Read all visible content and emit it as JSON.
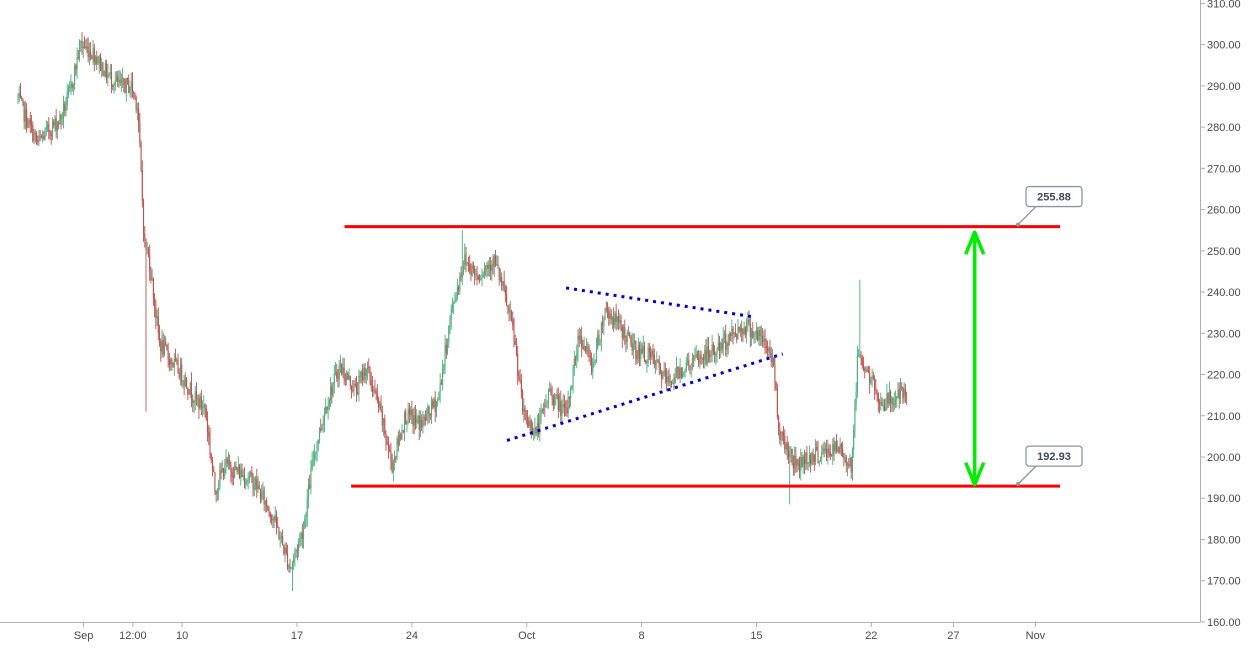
{
  "chart_data": {
    "type": "candlestick",
    "title": "",
    "xlabel": "",
    "ylabel": "",
    "ylim": [
      160,
      310
    ],
    "grid": false,
    "legend": "none",
    "colors": {
      "up": "#4caf7f",
      "down": "#c0504d",
      "resistance": "#ff0000",
      "support": "#ff0000",
      "triangle": "#0000cc",
      "range_arrow": "#00ee00",
      "axis": "#b0b0b0",
      "label": "#4a4a4a"
    },
    "x_ticks": [
      {
        "label": "Sep",
        "day": 4
      },
      {
        "label": "12:00",
        "day": 7
      },
      {
        "label": "10",
        "day": 10
      },
      {
        "label": "17",
        "day": 17
      },
      {
        "label": "24",
        "day": 24
      },
      {
        "label": "Oct",
        "day": 31
      },
      {
        "label": "8",
        "day": 38
      },
      {
        "label": "15",
        "day": 45
      },
      {
        "label": "22",
        "day": 52
      },
      {
        "label": "27",
        "day": 57
      },
      {
        "label": "Nov",
        "day": 62
      }
    ],
    "y_ticks": [
      "310.00",
      "300.00",
      "290.00",
      "280.00",
      "270.00",
      "260.00",
      "250.00",
      "240.00",
      "230.00",
      "220.00",
      "210.00",
      "200.00",
      "190.00",
      "180.00",
      "170.00",
      "160.00"
    ],
    "price_path": [
      [
        0.0,
        287
      ],
      [
        0.5,
        282
      ],
      [
        1.2,
        276
      ],
      [
        1.8,
        279
      ],
      [
        2.6,
        282
      ],
      [
        3.2,
        289
      ],
      [
        3.8,
        300
      ],
      [
        4.6,
        298
      ],
      [
        5.4,
        293
      ],
      [
        6.2,
        290
      ],
      [
        6.9,
        290
      ],
      [
        7.3,
        285
      ],
      [
        7.7,
        252
      ],
      [
        8.0,
        248
      ],
      [
        8.6,
        228
      ],
      [
        9.2,
        224
      ],
      [
        10.0,
        220
      ],
      [
        10.8,
        214
      ],
      [
        11.4,
        212
      ],
      [
        12.0,
        192
      ],
      [
        12.6,
        198
      ],
      [
        13.6,
        196
      ],
      [
        14.4,
        194
      ],
      [
        15.6,
        185
      ],
      [
        16.6,
        173
      ],
      [
        17.4,
        183
      ],
      [
        18.0,
        200
      ],
      [
        18.8,
        213
      ],
      [
        19.6,
        222
      ],
      [
        20.6,
        216
      ],
      [
        21.2,
        222
      ],
      [
        22.0,
        212
      ],
      [
        22.8,
        198
      ],
      [
        23.6,
        210
      ],
      [
        24.6,
        208
      ],
      [
        25.6,
        214
      ],
      [
        26.4,
        235
      ],
      [
        27.2,
        248
      ],
      [
        28.0,
        244
      ],
      [
        29.0,
        248
      ],
      [
        29.6,
        240
      ],
      [
        30.2,
        230
      ],
      [
        30.8,
        210
      ],
      [
        31.6,
        206
      ],
      [
        32.4,
        216
      ],
      [
        33.4,
        210
      ],
      [
        34.2,
        230
      ],
      [
        35.0,
        222
      ],
      [
        35.8,
        236
      ],
      [
        36.6,
        232
      ],
      [
        37.6,
        226
      ],
      [
        38.6,
        224
      ],
      [
        39.6,
        218
      ],
      [
        40.6,
        222
      ],
      [
        41.6,
        224
      ],
      [
        42.6,
        226
      ],
      [
        43.6,
        230
      ],
      [
        44.4,
        232
      ],
      [
        45.4,
        228
      ],
      [
        46.0,
        224
      ],
      [
        46.4,
        206
      ],
      [
        47.4,
        198
      ],
      [
        48.2,
        200
      ],
      [
        49.2,
        201
      ],
      [
        50.0,
        202
      ],
      [
        50.8,
        198
      ],
      [
        51.2,
        226
      ],
      [
        51.8,
        220
      ],
      [
        52.6,
        213
      ],
      [
        53.8,
        215
      ],
      [
        54.2,
        214
      ]
    ],
    "wick_extremes": [
      {
        "day": 3.9,
        "price": 303
      },
      {
        "day": 16.7,
        "price": 167.5
      },
      {
        "day": 27.1,
        "price": 255
      },
      {
        "day": 47.0,
        "price": 188.5
      },
      {
        "day": 51.3,
        "price": 243
      },
      {
        "day": 7.8,
        "price": 211
      }
    ],
    "annotations": [
      {
        "type": "horizontal_line",
        "name": "resistance",
        "price": 255.88,
        "from": 19.9,
        "to": 63.5,
        "label": "255.88"
      },
      {
        "type": "horizontal_line",
        "name": "support",
        "price": 192.93,
        "from": 20.3,
        "to": 63.5,
        "label": "192.93"
      },
      {
        "type": "trendline",
        "name": "triangle-upper",
        "points": [
          [
            33.4,
            241
          ],
          [
            44.8,
            234
          ]
        ]
      },
      {
        "type": "trendline",
        "name": "triangle-lower",
        "points": [
          [
            29.8,
            204
          ],
          [
            46.6,
            225
          ]
        ]
      },
      {
        "type": "double_arrow",
        "name": "range-arrow",
        "day": 58.3,
        "from": 255.0,
        "to": 192.8
      }
    ]
  }
}
